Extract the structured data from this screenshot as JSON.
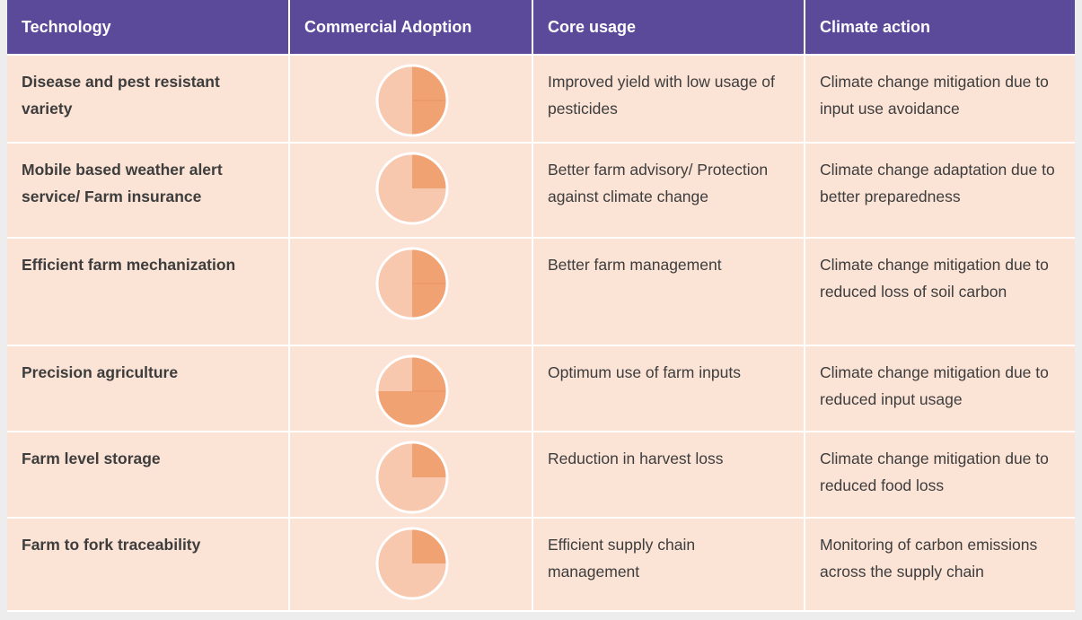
{
  "header": [
    "Technology",
    "Commercial Adoption",
    "Core usage",
    "Climate action"
  ],
  "rows": [
    {
      "technology": "Disease and pest resistant variety",
      "adoption": 0.5,
      "core_usage": "Improved yield with low usage of pesticides",
      "climate_action": "Climate change mitigation due to input use avoidance"
    },
    {
      "technology": "Mobile based weather alert service/ Farm insurance",
      "adoption": 0.25,
      "core_usage": "Better farm advisory/ Protection against climate change",
      "climate_action": "Climate change adaptation due to better preparedness"
    },
    {
      "technology": "Efficient farm mechanization",
      "adoption": 0.5,
      "core_usage": "Better farm management",
      "climate_action": "Climate change mitigation due to reduced loss of soil carbon"
    },
    {
      "technology": "Precision agriculture",
      "adoption": 0.75,
      "core_usage": "Optimum use of farm inputs",
      "climate_action": "Climate change mitigation due to reduced input usage"
    },
    {
      "technology": "Farm level storage",
      "adoption": 0.25,
      "core_usage": "Reduction in harvest loss",
      "climate_action": "Climate change mitigation due to reduced food loss"
    },
    {
      "technology": "Farm to fork traceability",
      "adoption": 0.25,
      "core_usage": "Efficient supply chain management",
      "climate_action": "Monitoring of carbon emissions across the supply chain"
    }
  ]
}
